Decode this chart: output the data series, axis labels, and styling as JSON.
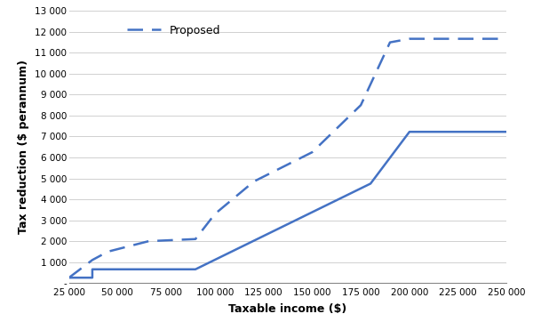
{
  "solid_x": [
    25000,
    37000,
    37000,
    90000,
    90000,
    180000,
    200000,
    250000
  ],
  "solid_y": [
    255,
    255,
    655,
    655,
    655,
    4750,
    7225,
    7225
  ],
  "dashed_x": [
    25000,
    37000,
    45000,
    66000,
    90000,
    100000,
    120000,
    150000,
    175000,
    190000,
    200000,
    250000
  ],
  "dashed_y": [
    255,
    1100,
    1500,
    2000,
    2100,
    3300,
    4850,
    6250,
    8500,
    11500,
    11670,
    11670
  ],
  "xlabel": "Taxable income ($)",
  "ylabel": "Tax reduction ($ perannum)",
  "legend_dashed": "Proposed",
  "xlim": [
    25000,
    250000
  ],
  "ylim": [
    0,
    13000
  ],
  "ytick_values": [
    0,
    1000,
    2000,
    3000,
    4000,
    5000,
    6000,
    7000,
    8000,
    9000,
    10000,
    11000,
    12000,
    13000
  ],
  "ytick_labels": [
    "-",
    "1 000",
    "2 000",
    "3 000",
    "4 000",
    "5 000",
    "6 000",
    "7 000",
    "8 000",
    "9 000",
    "10 000",
    "11 000",
    "12 000",
    "13 000"
  ],
  "xtick_values": [
    25000,
    50000,
    75000,
    100000,
    125000,
    150000,
    175000,
    200000,
    225000,
    250000
  ],
  "xtick_labels": [
    "25 000",
    "50 000",
    "75 000",
    "100 000",
    "125 000",
    "150 000",
    "175 000",
    "200 000",
    "225 000",
    "250 000"
  ],
  "line_color": "#4472C4",
  "background_color": "#ffffff",
  "grid_color": "#d0d0d0"
}
